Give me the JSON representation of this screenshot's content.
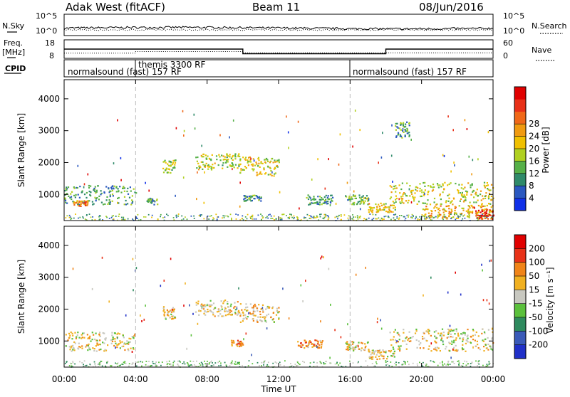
{
  "header": {
    "radar": "Adak West (fitACF)",
    "beam": "Beam 11",
    "date": "08/Jun/2016"
  },
  "panel_labels": {
    "nsky": "N.Sky",
    "nsearch": "N.Search",
    "freq_line1": "Freq.",
    "freq_line2": "[MHz]",
    "nave": "Nave",
    "cpid": "CPID"
  },
  "chart_data": [
    {
      "type": "line",
      "name": "noise",
      "left_ticks": [
        "10^5",
        "10^0"
      ],
      "right_ticks": [
        "10^5",
        "10^0"
      ],
      "note_series": [
        "N.Sky",
        "N.Search"
      ]
    },
    {
      "type": "line",
      "name": "frequency-nave",
      "left_ticks": [
        "18",
        "8"
      ],
      "right_ticks": [
        "60",
        "0"
      ],
      "x": [
        0,
        4,
        10,
        18,
        24
      ],
      "freq_mhz": [
        13,
        13,
        10.5,
        13,
        13
      ],
      "nave": [
        17,
        22,
        18,
        18,
        18
      ]
    },
    {
      "type": "table",
      "name": "cpid",
      "segments": [
        {
          "start_h": 0,
          "end_h": 4,
          "label": "normalsound (fast) 157 RF"
        },
        {
          "start_h": 4,
          "end_h": 16,
          "label": "themis 3300 RF"
        },
        {
          "start_h": 16,
          "end_h": 24,
          "label": "normalsound (fast) 157 RF"
        }
      ]
    },
    {
      "type": "heatmap",
      "name": "power",
      "ylabel": "Slant Range [km]",
      "yticks": [
        "1000",
        "2000",
        "3000",
        "4000"
      ],
      "ylim": [
        180,
        4600
      ],
      "xlim": [
        0,
        24
      ],
      "colorbar": {
        "label": "Power [dB]",
        "ticks": [
          "4",
          "8",
          "12",
          "16",
          "20",
          "24",
          "28"
        ],
        "colors": [
          "#1030e8",
          "#2a58c0",
          "#2f8a6a",
          "#56b048",
          "#b0d020",
          "#f0c000",
          "#f09a10",
          "#f06818",
          "#e83018",
          "#e00000"
        ]
      },
      "patches": [
        {
          "t0": 0.0,
          "t1": 4.0,
          "r0": 700,
          "r1": 1300,
          "level": 0.3
        },
        {
          "t0": 0.5,
          "t1": 1.3,
          "r0": 650,
          "r1": 850,
          "level": 0.7
        },
        {
          "t0": 4.6,
          "t1": 5.2,
          "r0": 700,
          "r1": 900,
          "level": 0.3
        },
        {
          "t0": 5.5,
          "t1": 6.2,
          "r0": 1700,
          "r1": 2100,
          "level": 0.45
        },
        {
          "t0": 7.3,
          "t1": 9.8,
          "r0": 1800,
          "r1": 2300,
          "level": 0.45
        },
        {
          "t0": 9.8,
          "t1": 12.0,
          "r0": 1600,
          "r1": 2200,
          "level": 0.5
        },
        {
          "t0": 10.0,
          "t1": 11.0,
          "r0": 800,
          "r1": 1000,
          "level": 0.3
        },
        {
          "t0": 13.5,
          "t1": 15.0,
          "r0": 700,
          "r1": 1000,
          "level": 0.3
        },
        {
          "t0": 15.7,
          "t1": 17.0,
          "r0": 700,
          "r1": 1000,
          "level": 0.35
        },
        {
          "t0": 17.0,
          "t1": 18.5,
          "r0": 450,
          "r1": 750,
          "level": 0.55
        },
        {
          "t0": 18.5,
          "t1": 19.3,
          "r0": 2800,
          "r1": 3300,
          "level": 0.3
        },
        {
          "t0": 18.2,
          "t1": 24.0,
          "r0": 700,
          "r1": 1400,
          "level": 0.5
        },
        {
          "t0": 20.0,
          "t1": 24.0,
          "r0": 250,
          "r1": 700,
          "level": 0.6
        },
        {
          "t0": 23.0,
          "t1": 24.0,
          "r0": 250,
          "r1": 550,
          "level": 0.9
        }
      ]
    },
    {
      "type": "heatmap",
      "name": "velocity",
      "ylabel": "Slant Range [km]",
      "yticks": [
        "1000",
        "2000",
        "3000",
        "4000"
      ],
      "ylim": [
        180,
        4600
      ],
      "xlim": [
        0,
        24
      ],
      "colorbar": {
        "label": "Velocity [m s⁻¹]",
        "ticks": [
          "200",
          "100",
          "50",
          "15",
          "-15",
          "-50",
          "-100",
          "-200"
        ],
        "colors": [
          "#2030c8",
          "#3a5ab8",
          "#2e8a5e",
          "#5bc03c",
          "#c8c8c0",
          "#f0b020",
          "#f08418",
          "#e83218",
          "#e00000"
        ]
      },
      "patches": [
        {
          "t0": 0.0,
          "t1": 4.0,
          "r0": 700,
          "r1": 1300,
          "level": 0.55
        },
        {
          "t0": 5.5,
          "t1": 6.2,
          "r0": 1700,
          "r1": 2100,
          "level": 0.55
        },
        {
          "t0": 7.3,
          "t1": 9.8,
          "r0": 1800,
          "r1": 2300,
          "level": 0.55
        },
        {
          "t0": 9.8,
          "t1": 12.0,
          "r0": 1600,
          "r1": 2200,
          "level": 0.6
        },
        {
          "t0": 9.3,
          "t1": 10.0,
          "r0": 850,
          "r1": 1050,
          "level": 0.7
        },
        {
          "t0": 13.0,
          "t1": 14.5,
          "r0": 800,
          "r1": 1050,
          "level": 0.7
        },
        {
          "t0": 15.7,
          "t1": 17.0,
          "r0": 700,
          "r1": 1000,
          "level": 0.55
        },
        {
          "t0": 17.0,
          "t1": 18.5,
          "r0": 450,
          "r1": 750,
          "level": 0.55
        },
        {
          "t0": 18.2,
          "t1": 24.0,
          "r0": 700,
          "r1": 1400,
          "level": 0.55
        }
      ]
    }
  ],
  "xaxis": {
    "label": "Time UT",
    "ticks": [
      "00:00",
      "04:00",
      "08:00",
      "12:00",
      "16:00",
      "20:00",
      "00:00"
    ]
  }
}
